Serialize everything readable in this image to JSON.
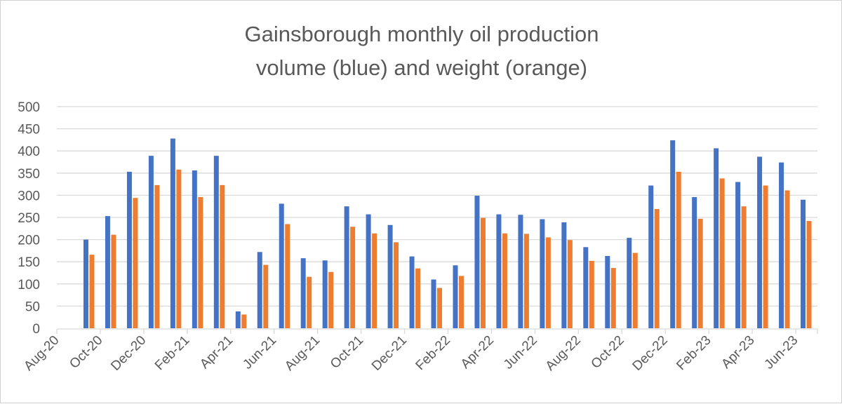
{
  "chart_data": {
    "type": "bar",
    "title_lines": [
      "Gainsborough monthly oil production",
      "volume (blue) and weight (orange)"
    ],
    "xlabel": "",
    "ylabel": "",
    "ylim": [
      0,
      500
    ],
    "yticks": [
      0,
      50,
      100,
      150,
      200,
      250,
      300,
      350,
      400,
      450,
      500
    ],
    "grid": true,
    "legend": "none",
    "x_axis_months": [
      "Aug-20",
      "Sep-20",
      "Oct-20",
      "Nov-20",
      "Dec-20",
      "Jan-21",
      "Feb-21",
      "Mar-21",
      "Apr-21",
      "May-21",
      "Jun-21",
      "Jul-21",
      "Aug-21",
      "Sep-21",
      "Oct-21",
      "Nov-21",
      "Dec-21",
      "Jan-22",
      "Feb-22",
      "Mar-22",
      "Apr-22",
      "May-22",
      "Jun-22",
      "Jul-22",
      "Aug-22",
      "Sep-22",
      "Oct-22",
      "Nov-22",
      "Dec-22",
      "Jan-23",
      "Feb-23",
      "Mar-23",
      "Apr-23",
      "May-23",
      "Jun-23"
    ],
    "xtick_labels": [
      "Aug-20",
      "Oct-20",
      "Dec-20",
      "Feb-21",
      "Apr-21",
      "Jun-21",
      "Aug-21",
      "Oct-21",
      "Dec-21",
      "Feb-22",
      "Apr-22",
      "Jun-22",
      "Aug-22",
      "Oct-22",
      "Dec-22",
      "Feb-23",
      "Apr-23",
      "Jun-23"
    ],
    "series": [
      {
        "name": "volume",
        "color": "#4472C4",
        "values": [
          null,
          200,
          253,
          353,
          389,
          428,
          356,
          389,
          38,
          172,
          281,
          158,
          153,
          275,
          257,
          233,
          162,
          110,
          142,
          299,
          257,
          256,
          246,
          239,
          183,
          163,
          204,
          322,
          424,
          296,
          406,
          330,
          387,
          374,
          290
        ]
      },
      {
        "name": "weight",
        "color": "#ED7D31",
        "values": [
          null,
          166,
          211,
          294,
          323,
          358,
          296,
          323,
          31,
          143,
          235,
          116,
          127,
          229,
          214,
          194,
          135,
          91,
          118,
          249,
          214,
          213,
          205,
          199,
          152,
          136,
          170,
          269,
          353,
          247,
          338,
          275,
          322,
          311,
          242
        ]
      }
    ]
  }
}
